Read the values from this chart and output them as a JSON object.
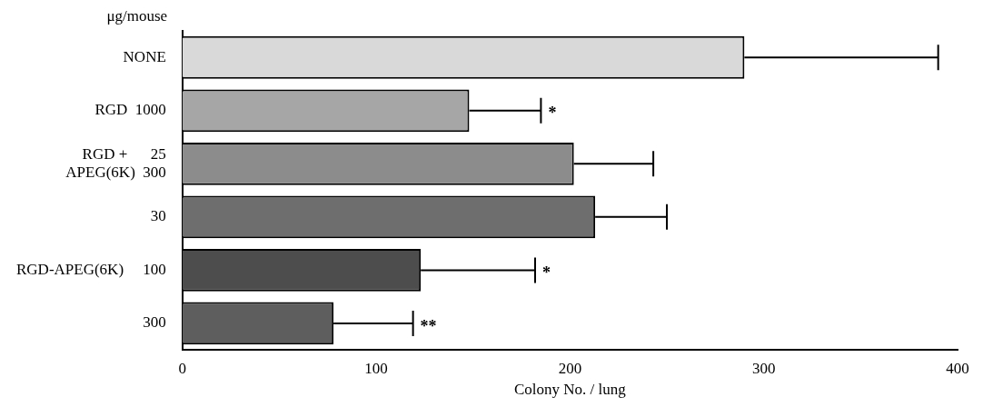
{
  "chart_data": {
    "type": "bar",
    "orientation": "horizontal",
    "ylabel": "μg/mouse",
    "xlabel": "Colony No. / lung",
    "categories": [
      "NONE",
      "RGD  1000",
      "RGD +      25\nAPEG(6K)  300",
      "30",
      "RGD-APEG(6K)     100",
      "300"
    ],
    "values": [
      290,
      148,
      202,
      213,
      123,
      78
    ],
    "errors": [
      [
        290,
        390
      ],
      [
        148,
        185
      ],
      [
        202,
        243
      ],
      [
        213,
        250
      ],
      [
        123,
        182
      ],
      [
        78,
        119
      ]
    ],
    "colors": [
      "#d9d9d9",
      "#a6a6a6",
      "#8c8c8c",
      "#6e6e6e",
      "#4d4d4d",
      "#5e5e5e"
    ],
    "xlim": [
      0,
      400
    ],
    "xticks": [
      0,
      100,
      200,
      300,
      400
    ],
    "grid": false,
    "legend": false,
    "annotations": [
      {
        "text": "*",
        "x": 185,
        "y": "RGD  1000"
      },
      {
        "text": "*",
        "x": 182,
        "y": "RGD-APEG(6K)     100"
      },
      {
        "text": "**",
        "x": 119,
        "y": "300"
      }
    ]
  }
}
